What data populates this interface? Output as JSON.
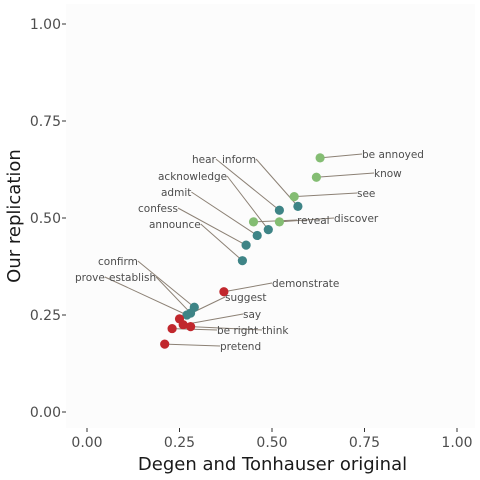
{
  "colors": {
    "red": "#c1272d",
    "teal": "#3e8486",
    "green": "#84bd73",
    "panel": "#fcfcfc",
    "background": "#ffffff"
  },
  "chart_data": {
    "type": "scatter",
    "xlabel": "Degen and Tonhauser original",
    "ylabel": "Our replication",
    "xlim": [
      0,
      1
    ],
    "ylim": [
      0,
      1
    ],
    "x_ticks": [
      "0.00",
      "0.25",
      "0.50",
      "0.75",
      "1.00"
    ],
    "y_ticks": [
      "0.00",
      "0.25",
      "0.50",
      "0.75",
      "1.00"
    ],
    "grid": false,
    "legend": "none",
    "points": [
      {
        "label": "be annoyed",
        "x": 0.63,
        "y": 0.655,
        "group": "green"
      },
      {
        "label": "know",
        "x": 0.62,
        "y": 0.605,
        "group": "green"
      },
      {
        "label": "see",
        "x": 0.56,
        "y": 0.555,
        "group": "green"
      },
      {
        "label": "hear",
        "x": 0.52,
        "y": 0.52,
        "group": "teal"
      },
      {
        "label": "inform",
        "x": 0.57,
        "y": 0.53,
        "group": "teal"
      },
      {
        "label": "acknowledge",
        "x": 0.49,
        "y": 0.47,
        "group": "teal"
      },
      {
        "label": "admit",
        "x": 0.46,
        "y": 0.455,
        "group": "teal"
      },
      {
        "label": "discover",
        "x": 0.52,
        "y": 0.49,
        "group": "green"
      },
      {
        "label": "reveal",
        "x": 0.45,
        "y": 0.49,
        "group": "green"
      },
      {
        "label": "confess",
        "x": 0.43,
        "y": 0.43,
        "group": "teal"
      },
      {
        "label": "announce",
        "x": 0.42,
        "y": 0.39,
        "group": "teal"
      },
      {
        "label": "demonstrate",
        "x": 0.37,
        "y": 0.31,
        "group": "red"
      },
      {
        "label": "confirm",
        "x": 0.29,
        "y": 0.27,
        "group": "teal"
      },
      {
        "label": "establish",
        "x": 0.28,
        "y": 0.255,
        "group": "teal"
      },
      {
        "label": "prove",
        "x": 0.27,
        "y": 0.25,
        "group": "teal"
      },
      {
        "label": "suggest",
        "x": 0.25,
        "y": 0.24,
        "group": "red"
      },
      {
        "label": "say",
        "x": 0.26,
        "y": 0.225,
        "group": "red"
      },
      {
        "label": "think",
        "x": 0.28,
        "y": 0.22,
        "group": "red"
      },
      {
        "label": "be right",
        "x": 0.23,
        "y": 0.215,
        "group": "red"
      },
      {
        "label": "pretend",
        "x": 0.21,
        "y": 0.175,
        "group": "red"
      }
    ]
  }
}
